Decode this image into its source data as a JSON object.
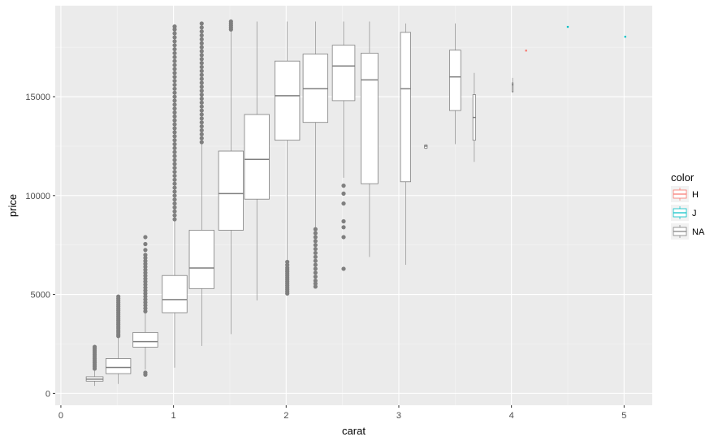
{
  "chart_data": {
    "type": "boxplot",
    "xlabel": "carat",
    "ylabel": "price",
    "xlim": [
      -0.05,
      5.25
    ],
    "ylim": [
      -600,
      19600
    ],
    "x_ticks": [
      0,
      1,
      2,
      3,
      4,
      5
    ],
    "y_ticks": [
      0,
      5000,
      10000,
      15000
    ],
    "legend": {
      "title": "color",
      "position": "right",
      "entries": [
        {
          "label": "H",
          "color": "#F8766D"
        },
        {
          "label": "J",
          "color": "#00BFC4"
        },
        {
          "label": "NA",
          "color": "#7F7F7F"
        }
      ]
    },
    "background": "#EBEBEB",
    "grid": true,
    "boxes": [
      {
        "x": 0.3,
        "width": 0.15,
        "q1": 620,
        "median": 720,
        "q3": 840,
        "lower": 380,
        "upper": 1150,
        "color": "NA",
        "outliers": [
          1250,
          1350,
          1450,
          1550,
          1650,
          1750,
          1850,
          1950,
          2050,
          2150,
          2250,
          2350
        ]
      },
      {
        "x": 0.51,
        "width": 0.22,
        "q1": 1000,
        "median": 1310,
        "q3": 1760,
        "lower": 480,
        "upper": 2810,
        "color": "NA",
        "outliers": [
          2900,
          3000,
          3100,
          3200,
          3300,
          3400,
          3500,
          3600,
          3700,
          3800,
          3900,
          4000,
          4100,
          4200,
          4300,
          4400,
          4500,
          4600,
          4700,
          4800,
          4900
        ]
      },
      {
        "x": 0.75,
        "width": 0.22,
        "q1": 2340,
        "median": 2620,
        "q3": 3080,
        "lower": 1200,
        "upper": 4060,
        "color": "NA",
        "outliers": [
          950,
          1050,
          4150,
          4300,
          4450,
          4600,
          4750,
          4900,
          5050,
          5200,
          5350,
          5500,
          5650,
          5800,
          5950,
          6100,
          6250,
          6400,
          6550,
          6700,
          6850,
          7000,
          7250,
          7550,
          7900
        ]
      },
      {
        "x": 1.01,
        "width": 0.22,
        "q1": 4080,
        "median": 4740,
        "q3": 5960,
        "lower": 1300,
        "upper": 8700,
        "color": "NA",
        "outliers": [
          8800,
          9000,
          9200,
          9400,
          9600,
          9800,
          10000,
          10200,
          10400,
          10600,
          10800,
          11000,
          11200,
          11400,
          11600,
          11800,
          12000,
          12200,
          12400,
          12600,
          12800,
          13000,
          13200,
          13400,
          13600,
          13800,
          14000,
          14200,
          14400,
          14600,
          14800,
          15000,
          15200,
          15400,
          15600,
          15800,
          16000,
          16200,
          16400,
          16600,
          16800,
          17000,
          17200,
          17400,
          17600,
          17800,
          18000,
          18200,
          18400,
          18550
        ]
      },
      {
        "x": 1.25,
        "width": 0.22,
        "q1": 5300,
        "median": 6340,
        "q3": 8250,
        "lower": 2400,
        "upper": 12600,
        "color": "NA",
        "outliers": [
          12700,
          12900,
          13100,
          13300,
          13500,
          13700,
          13900,
          14100,
          14300,
          14500,
          14700,
          14900,
          15100,
          15300,
          15500,
          15700,
          15900,
          16100,
          16300,
          16500,
          16700,
          16900,
          17100,
          17300,
          17500,
          17700,
          17900,
          18100,
          18300,
          18500,
          18700
        ]
      },
      {
        "x": 1.51,
        "width": 0.22,
        "q1": 8250,
        "median": 10100,
        "q3": 12250,
        "lower": 3000,
        "upper": 18300,
        "color": "NA",
        "outliers": [
          18400,
          18500,
          18600,
          18700,
          18800
        ]
      },
      {
        "x": 1.74,
        "width": 0.22,
        "q1": 9820,
        "median": 11830,
        "q3": 14100,
        "lower": 4700,
        "upper": 18800,
        "color": "NA",
        "outliers": []
      },
      {
        "x": 2.01,
        "width": 0.22,
        "q1": 12800,
        "median": 15050,
        "q3": 16800,
        "lower": 5200,
        "upper": 18800,
        "color": "NA",
        "outliers": [
          5050,
          5150,
          5250,
          5350,
          5450,
          5550,
          5650,
          5750,
          5850,
          5950,
          6050,
          6150,
          6250,
          6350,
          6500,
          6650
        ]
      },
      {
        "x": 2.26,
        "width": 0.22,
        "q1": 13700,
        "median": 15400,
        "q3": 17150,
        "lower": 8300,
        "upper": 18800,
        "color": "NA",
        "outliers": [
          5400,
          5550,
          5700,
          5900,
          6100,
          6300,
          6500,
          6700,
          6900,
          7100,
          7300,
          7500,
          7700,
          7900,
          8100,
          8300
        ]
      },
      {
        "x": 2.51,
        "width": 0.2,
        "q1": 14800,
        "median": 16550,
        "q3": 17600,
        "lower": 10900,
        "upper": 18800,
        "color": "NA",
        "outliers": [
          6300,
          7900,
          8400,
          8700,
          9600,
          10100,
          10500
        ]
      },
      {
        "x": 2.74,
        "width": 0.15,
        "q1": 10600,
        "median": 15850,
        "q3": 17200,
        "lower": 6900,
        "upper": 18800,
        "color": "NA",
        "outliers": []
      },
      {
        "x": 3.06,
        "width": 0.09,
        "q1": 10700,
        "median": 15400,
        "q3": 18250,
        "lower": 6500,
        "upper": 18700,
        "color": "NA",
        "outliers": []
      },
      {
        "x": 3.24,
        "width": 0.025,
        "q1": 12400,
        "median": 12500,
        "q3": 12550,
        "lower": 12350,
        "upper": 12600,
        "color": "NA",
        "outliers": []
      },
      {
        "x": 3.5,
        "width": 0.1,
        "q1": 14300,
        "median": 16000,
        "q3": 17350,
        "lower": 12600,
        "upper": 18700,
        "color": "NA",
        "outliers": []
      },
      {
        "x": 3.67,
        "width": 0.025,
        "q1": 12800,
        "median": 13950,
        "q3": 15100,
        "lower": 11700,
        "upper": 16200,
        "color": "NA",
        "outliers": []
      },
      {
        "x": 4.01,
        "width": 0.01,
        "q1": 15250,
        "median": 15600,
        "q3": 15700,
        "lower": 15200,
        "upper": 15950,
        "color": "NA",
        "outliers": []
      },
      {
        "x": 4.13,
        "width": 0.01,
        "q1": 17300,
        "median": 17330,
        "q3": 17360,
        "lower": 17300,
        "upper": 17360,
        "color": "H",
        "outliers": []
      },
      {
        "x": 4.5,
        "width": 0.01,
        "q1": 18500,
        "median": 18530,
        "q3": 18560,
        "lower": 18500,
        "upper": 18560,
        "color": "J",
        "outliers": []
      },
      {
        "x": 5.01,
        "width": 0.01,
        "q1": 18000,
        "median": 18030,
        "q3": 18060,
        "lower": 18000,
        "upper": 18060,
        "color": "J",
        "outliers": []
      }
    ]
  }
}
